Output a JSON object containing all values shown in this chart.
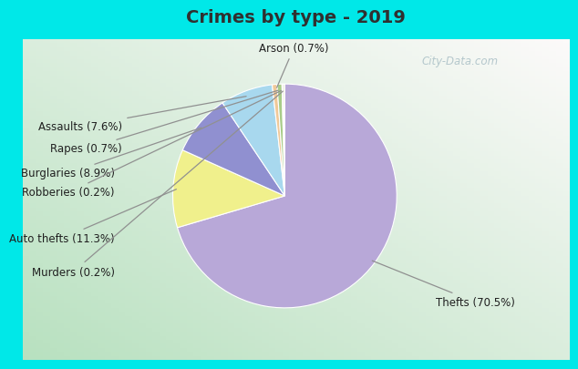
{
  "title": "Crimes by type - 2019",
  "labels": [
    "Thefts",
    "Auto thefts",
    "Burglaries",
    "Assaults",
    "Arson",
    "Rapes",
    "Robberies",
    "Murders"
  ],
  "pct_labels": [
    "Thefts (70.5%)",
    "Auto thefts (11.3%)",
    "Burglaries (8.9%)",
    "Assaults (7.6%)",
    "Arson (0.7%)",
    "Rapes (0.7%)",
    "Robberies (0.2%)",
    "Murders (0.2%)"
  ],
  "values": [
    70.5,
    11.3,
    8.9,
    7.6,
    0.7,
    0.7,
    0.2,
    0.2
  ],
  "colors": [
    "#b8a8d8",
    "#f0f08c",
    "#9090d0",
    "#a8d8ee",
    "#f0c898",
    "#a8cc88",
    "#f0a8a8",
    "#c8d8b0"
  ],
  "title_fontsize": 14,
  "title_color": "#303030",
  "background_color_outer": "#00e8e8",
  "watermark": "City-Data.com",
  "label_fontsize": 8.5,
  "label_color": "#202020",
  "arrow_color": "#909090",
  "wedge_edge_color": "white",
  "wedge_edge_width": 0.8
}
